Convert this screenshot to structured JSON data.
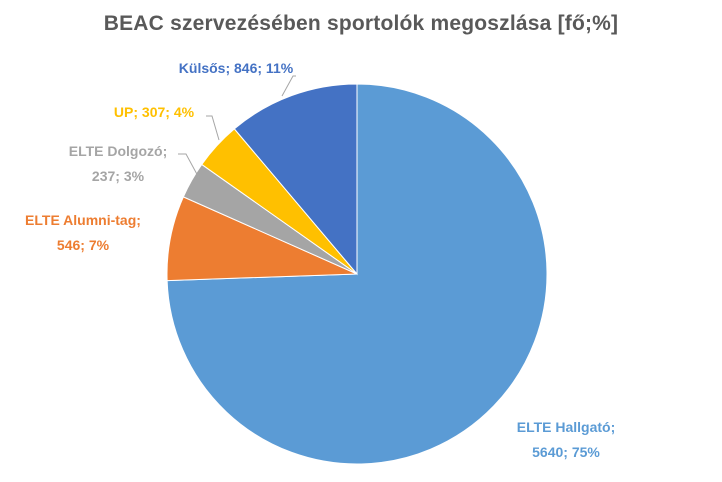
{
  "chart_data": {
    "type": "pie",
    "title": "BEAC szervezésében sportolók megoszlása [fő;%]",
    "slices": [
      {
        "label": "ELTE Hallgató;",
        "value": 5640,
        "percent": 75,
        "value_text": "5640; 75%",
        "color": "#5b9bd5"
      },
      {
        "label": "ELTE Alumni-tag;",
        "value": 546,
        "percent": 7,
        "value_text": "546; 7%",
        "color": "#ed7d31"
      },
      {
        "label": "ELTE Dolgozó;",
        "value": 237,
        "percent": 3,
        "value_text": "237; 3%",
        "color": "#a5a5a5"
      },
      {
        "label": "UP;",
        "value": 307,
        "percent": 4,
        "value_text": "307; 4%",
        "color": "#ffc000"
      },
      {
        "label": "Külsős;",
        "value": 846,
        "percent": 11,
        "value_text": "846; 11%",
        "color": "#4472c4"
      }
    ],
    "start_angle": "12 o'clock",
    "direction": "clockwise",
    "legend": "none",
    "data_labels": "outside"
  }
}
